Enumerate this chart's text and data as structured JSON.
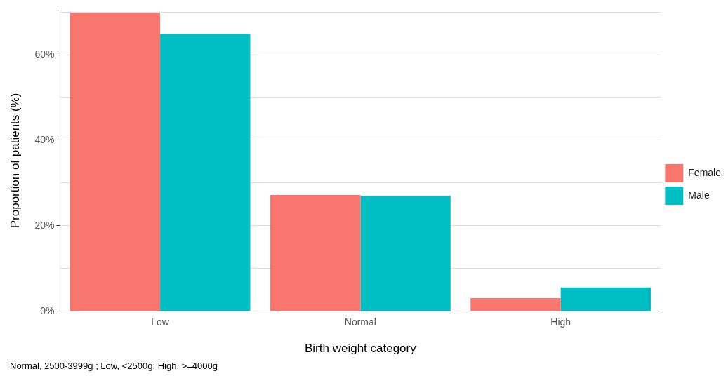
{
  "chart_data": {
    "type": "bar",
    "xlabel": "Birth weight category",
    "ylabel": "Proportion of patients (%)",
    "categories": [
      "Low",
      "Normal",
      "High"
    ],
    "series": [
      {
        "name": "Female",
        "color": "#f8766d",
        "values": [
          69.8,
          27.2,
          3.1
        ]
      },
      {
        "name": "Male",
        "color": "#00bfc4",
        "values": [
          64.9,
          27.0,
          5.6
        ]
      }
    ],
    "ylim": [
      0,
      70.5
    ],
    "yticks": [
      {
        "value": 0,
        "label": "0%"
      },
      {
        "value": 10,
        "label": null
      },
      {
        "value": 20,
        "label": "20%"
      },
      {
        "value": 30,
        "label": null
      },
      {
        "value": 40,
        "label": "40%"
      },
      {
        "value": 50,
        "label": null
      },
      {
        "value": 60,
        "label": "60%"
      },
      {
        "value": 70,
        "label": null
      }
    ],
    "grid": "y",
    "legend": "right",
    "annotations": [
      "Normal, 2500-3999g ; Low, <2500g; High, >=4000g"
    ]
  }
}
